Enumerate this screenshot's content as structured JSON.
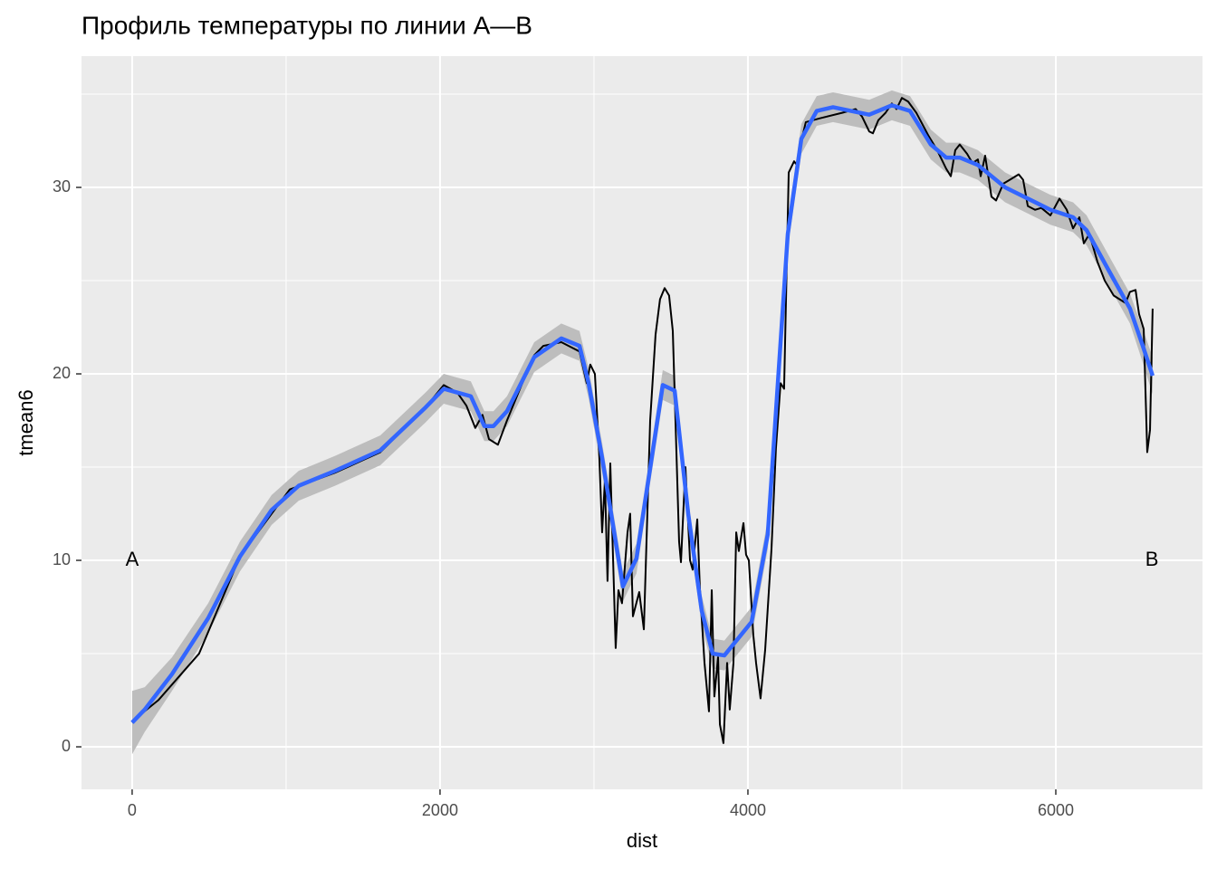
{
  "chart_data": {
    "type": "line",
    "title": "Профиль температуры по линии A—B",
    "x_label": "dist",
    "y_label": "tmean6",
    "xlim": [
      -329,
      6953
    ],
    "ylim": [
      -2.28,
      37.04
    ],
    "xticks": [
      0,
      2000,
      4000,
      6000
    ],
    "yticks": [
      0,
      10,
      20,
      30
    ],
    "x_minor_grid": [
      1000,
      3000,
      5000
    ],
    "y_minor_grid": [
      5,
      15,
      25,
      35
    ],
    "grid": true,
    "panel_color": "#EBEBEB",
    "annotations": [
      {
        "text": "A",
        "x": 0,
        "y": 10
      },
      {
        "text": "B",
        "x": 6624,
        "y": 10
      }
    ],
    "series": [
      {
        "color": "#000000",
        "x": [
          0,
          80,
          170,
          435,
          700,
          906,
          1024,
          1318,
          1612,
          1906,
          2024,
          2112,
          2171,
          2229,
          2276,
          2318,
          2376,
          2435,
          2524,
          2612,
          2671,
          2788,
          2906,
          2953,
          2976,
          3006,
          3035,
          3053,
          3071,
          3088,
          3106,
          3141,
          3159,
          3182,
          3218,
          3235,
          3253,
          3294,
          3324,
          3365,
          3400,
          3429,
          3459,
          3488,
          3512,
          3553,
          3565,
          3594,
          3624,
          3641,
          3671,
          3688,
          3718,
          3747,
          3765,
          3782,
          3806,
          3818,
          3841,
          3865,
          3882,
          3906,
          3924,
          3941,
          3971,
          3988,
          4006,
          4035,
          4053,
          4082,
          4112,
          4153,
          4182,
          4212,
          4235,
          4265,
          4300,
          4318,
          4347,
          4376,
          4465,
          4612,
          4700,
          4741,
          4788,
          4812,
          4847,
          4894,
          4935,
          4965,
          5000,
          5041,
          5094,
          5171,
          5229,
          5288,
          5318,
          5347,
          5376,
          5424,
          5459,
          5494,
          5512,
          5541,
          5582,
          5612,
          5659,
          5700,
          5759,
          5788,
          5818,
          5865,
          5906,
          5965,
          6024,
          6071,
          6112,
          6153,
          6182,
          6218,
          6271,
          6318,
          6376,
          6453,
          6482,
          6518,
          6541,
          6571,
          6594,
          6612,
          6629
        ],
        "values": [
          1.3,
          1.9,
          2.5,
          5.0,
          10.2,
          12.5,
          13.8,
          14.7,
          15.8,
          18.2,
          19.4,
          19.0,
          18.3,
          17.1,
          17.8,
          16.5,
          16.2,
          17.5,
          19.3,
          21.0,
          21.5,
          21.7,
          21.2,
          19.5,
          20.5,
          20.0,
          15.5,
          11.5,
          14.3,
          8.9,
          15.2,
          5.3,
          8.4,
          7.7,
          11.5,
          12.5,
          7.0,
          8.3,
          6.3,
          17.5,
          22.1,
          24.0,
          24.6,
          24.2,
          22.3,
          11.0,
          9.9,
          15.0,
          10.0,
          9.5,
          12.2,
          8.5,
          4.5,
          1.9,
          8.4,
          2.7,
          4.8,
          1.2,
          0.2,
          4.5,
          2.0,
          4.5,
          11.5,
          10.5,
          12.0,
          10.3,
          10.0,
          6.0,
          4.5,
          2.6,
          5.2,
          10.6,
          16.0,
          19.5,
          19.2,
          30.8,
          31.4,
          31.2,
          32.5,
          33.5,
          33.7,
          34.0,
          34.2,
          33.8,
          33.0,
          32.9,
          33.6,
          34.0,
          34.5,
          34.2,
          34.8,
          34.6,
          34.0,
          32.8,
          32.0,
          31.0,
          30.6,
          32.0,
          32.3,
          31.8,
          31.3,
          31.5,
          30.6,
          31.7,
          29.5,
          29.3,
          30.2,
          30.4,
          30.7,
          30.4,
          29.0,
          28.8,
          28.9,
          28.5,
          29.4,
          28.8,
          27.8,
          28.4,
          27.0,
          27.5,
          26.0,
          25.0,
          24.2,
          23.8,
          24.4,
          24.5,
          23.2,
          22.4,
          15.8,
          17.0,
          23.5
        ]
      },
      {
        "color": "#3366FF",
        "ribbon_color": "#BDBDBD",
        "x": [
          0,
          82,
          259,
          494,
          700,
          906,
          1082,
          1318,
          1612,
          1906,
          2024,
          2200,
          2288,
          2347,
          2435,
          2612,
          2788,
          2906,
          2965,
          3053,
          3188,
          3276,
          3447,
          3524,
          3612,
          3700,
          3771,
          3847,
          4024,
          4129,
          4259,
          4347,
          4447,
          4553,
          4788,
          4935,
          5053,
          5188,
          5288,
          5376,
          5494,
          5671,
          5965,
          6112,
          6200,
          6347,
          6482,
          6565,
          6629
        ],
        "values": [
          1.3,
          2.0,
          3.9,
          6.9,
          10.2,
          12.7,
          14.0,
          14.8,
          15.9,
          18.2,
          19.2,
          18.8,
          17.2,
          17.2,
          18.0,
          20.9,
          21.9,
          21.5,
          19.5,
          15.5,
          8.6,
          10.1,
          19.4,
          19.1,
          12.5,
          7.3,
          5.0,
          4.9,
          6.7,
          11.4,
          27.5,
          32.6,
          34.1,
          34.3,
          33.9,
          34.4,
          34.1,
          32.3,
          31.6,
          31.6,
          31.2,
          30.0,
          28.8,
          28.4,
          27.7,
          25.5,
          23.5,
          21.5,
          19.9
        ],
        "lower": [
          -0.4,
          0.8,
          3.0,
          6.1,
          9.4,
          11.9,
          13.2,
          14.0,
          15.1,
          17.4,
          18.4,
          18.0,
          16.4,
          16.4,
          17.2,
          20.1,
          21.1,
          20.7,
          18.7,
          14.7,
          7.8,
          9.3,
          18.6,
          18.3,
          11.7,
          6.5,
          4.2,
          4.1,
          5.9,
          10.6,
          26.7,
          31.8,
          33.3,
          33.5,
          33.1,
          33.6,
          33.3,
          31.5,
          30.8,
          30.8,
          30.4,
          29.2,
          28.0,
          27.6,
          26.9,
          24.7,
          22.7,
          20.6,
          18.9
        ],
        "upper": [
          3.0,
          3.2,
          4.8,
          7.7,
          11.0,
          13.5,
          14.8,
          15.6,
          16.7,
          19.0,
          20.0,
          19.6,
          18.0,
          18.0,
          18.8,
          21.7,
          22.7,
          22.3,
          20.3,
          16.3,
          9.4,
          10.9,
          20.2,
          19.9,
          13.3,
          8.1,
          5.8,
          5.7,
          7.5,
          12.2,
          28.3,
          33.4,
          34.9,
          35.1,
          34.7,
          35.2,
          34.9,
          33.1,
          32.4,
          32.4,
          32.0,
          30.8,
          29.6,
          29.2,
          28.5,
          26.3,
          24.3,
          22.4,
          20.9
        ]
      }
    ]
  }
}
